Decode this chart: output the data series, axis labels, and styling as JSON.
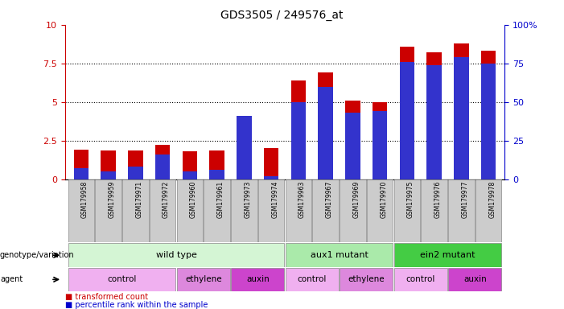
{
  "title": "GDS3505 / 249576_at",
  "samples": [
    "GSM179958",
    "GSM179959",
    "GSM179971",
    "GSM179972",
    "GSM179960",
    "GSM179961",
    "GSM179973",
    "GSM179974",
    "GSM179963",
    "GSM179967",
    "GSM179969",
    "GSM179970",
    "GSM179975",
    "GSM179976",
    "GSM179977",
    "GSM179978"
  ],
  "transformed_count": [
    1.9,
    1.85,
    1.85,
    2.2,
    1.8,
    1.85,
    4.1,
    2.0,
    6.4,
    6.9,
    5.1,
    5.0,
    8.6,
    8.2,
    8.8,
    8.3
  ],
  "percentile_rank": [
    7,
    5,
    8,
    16,
    5,
    6,
    41,
    2,
    50,
    60,
    43,
    44,
    76,
    74,
    79,
    75
  ],
  "ylim": [
    0,
    10
  ],
  "y2lim": [
    0,
    100
  ],
  "yticks_left": [
    0,
    2.5,
    5,
    7.5,
    10
  ],
  "yticks_right": [
    0,
    25,
    50,
    75,
    100
  ],
  "bar_color": "#cc0000",
  "percentile_color": "#3333cc",
  "bar_width": 0.55,
  "genotype_groups": [
    {
      "label": "wild type",
      "start": 0,
      "end": 7,
      "color": "#d4f5d4"
    },
    {
      "label": "aux1 mutant",
      "start": 8,
      "end": 11,
      "color": "#aaeaaa"
    },
    {
      "label": "ein2 mutant",
      "start": 12,
      "end": 15,
      "color": "#44cc44"
    }
  ],
  "agent_groups": [
    {
      "label": "control",
      "start": 0,
      "end": 3,
      "color": "#f0b0f0"
    },
    {
      "label": "ethylene",
      "start": 4,
      "end": 5,
      "color": "#dd88dd"
    },
    {
      "label": "auxin",
      "start": 6,
      "end": 7,
      "color": "#cc44cc"
    },
    {
      "label": "control",
      "start": 8,
      "end": 9,
      "color": "#f0b0f0"
    },
    {
      "label": "ethylene",
      "start": 10,
      "end": 11,
      "color": "#dd88dd"
    },
    {
      "label": "control",
      "start": 12,
      "end": 13,
      "color": "#f0b0f0"
    },
    {
      "label": "auxin",
      "start": 14,
      "end": 15,
      "color": "#cc44cc"
    }
  ],
  "tick_color_left": "#cc0000",
  "tick_color_right": "#0000cc",
  "xticklabel_bg": "#cccccc",
  "xticklabel_edge": "#888888"
}
